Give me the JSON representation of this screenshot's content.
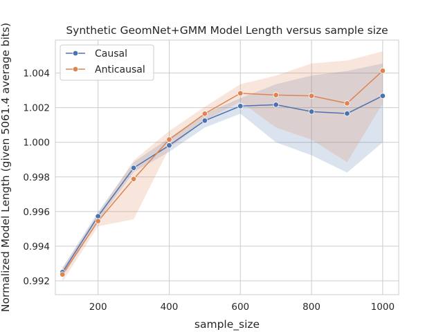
{
  "chart_data": {
    "type": "line",
    "title": "Synthetic GeomNet+GMM Model Length versus sample size",
    "xlabel": "sample_size",
    "ylabel": "Normalized Model Length (given 5061.4 average bits)",
    "xlim": [
      80,
      1045
    ],
    "ylim": [
      0.9912,
      1.0059
    ],
    "x": [
      100,
      200,
      300,
      400,
      500,
      600,
      700,
      800,
      900,
      1000
    ],
    "xticks": [
      200,
      400,
      600,
      800,
      1000
    ],
    "xtick_labels": [
      "200",
      "400",
      "600",
      "800",
      "1000"
    ],
    "yticks": [
      0.992,
      0.994,
      0.996,
      0.998,
      1.0,
      1.002,
      1.004
    ],
    "ytick_labels": [
      "0.992",
      "0.994",
      "0.996",
      "0.998",
      "1.000",
      "1.002",
      "1.004"
    ],
    "grid": true,
    "legend_position": "top-left",
    "series": [
      {
        "name": "Causal",
        "color": "#4c72b0",
        "values": [
          0.9925,
          0.99573,
          0.99852,
          0.99982,
          1.00125,
          1.00209,
          1.00217,
          1.00177,
          1.00166,
          1.00268
        ],
        "ci_low": [
          0.9922,
          0.99545,
          0.99828,
          0.99945,
          1.00085,
          1.00165,
          1.0,
          0.99925,
          0.99825,
          1.0
        ],
        "ci_high": [
          0.99275,
          0.99598,
          0.99885,
          1.00025,
          1.00165,
          1.00255,
          1.00335,
          1.00385,
          1.00412,
          1.00455
        ]
      },
      {
        "name": "Anticausal",
        "color": "#dd8452",
        "values": [
          0.99237,
          0.99545,
          0.99788,
          1.00016,
          1.00165,
          1.00283,
          1.00273,
          1.00268,
          1.00225,
          1.00413
        ],
        "ci_low": [
          0.99195,
          0.99515,
          0.99555,
          0.99965,
          1.00125,
          1.00235,
          1.00085,
          1.00015,
          0.99885,
          1.00225
        ],
        "ci_high": [
          0.99275,
          0.99585,
          0.99895,
          1.00065,
          1.00205,
          1.00335,
          1.00385,
          1.00455,
          1.00472,
          1.00525
        ]
      }
    ]
  }
}
